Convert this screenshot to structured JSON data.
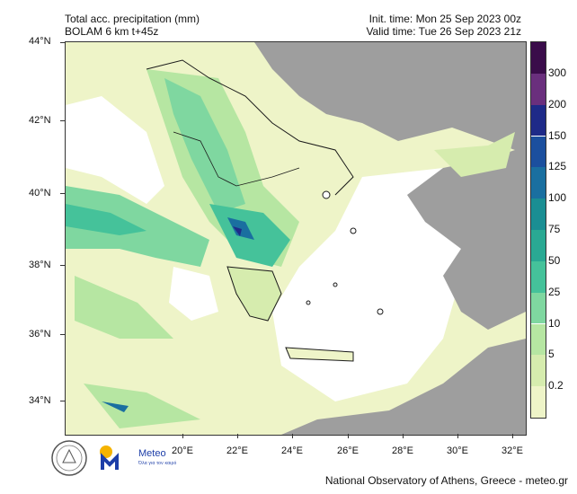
{
  "header": {
    "title_line1": "Total acc. precipitation (mm)",
    "title_line2": "BOLAM 6 km t+45z",
    "init_time": "Init. time: Mon 25 Sep 2023 00z",
    "valid_time": "Valid time: Tue 26 Sep 2023 21z"
  },
  "axes": {
    "lat_labels": [
      "44°N",
      "42°N",
      "40°N",
      "38°N",
      "36°N",
      "34°N"
    ],
    "lon_labels": [
      "20°E",
      "22°E",
      "24°E",
      "26°E",
      "28°E",
      "30°E",
      "32°E"
    ]
  },
  "colorbar": {
    "levels": [
      "0.2",
      "5",
      "10",
      "25",
      "50",
      "75",
      "100",
      "125",
      "150",
      "200",
      "300"
    ],
    "colors": [
      "#eef4c8",
      "#d6ecae",
      "#b6e6a2",
      "#7fd7a0",
      "#45c29a",
      "#2aa993",
      "#1a8e93",
      "#1a6fa0",
      "#1b4f9e",
      "#1e2a88",
      "#6a2f7d",
      "#3a0c4a"
    ]
  },
  "map_colors": {
    "land_gray": "#9e9e9e",
    "sea_white": "#ffffff",
    "border": "#1a1a1a"
  },
  "logos": {
    "meteo_word": "Meteo",
    "meteo_sub": "Όλα για τον καιρό"
  },
  "footer": {
    "credit": "National Observatory of Athens, Greece - meteo.gr"
  }
}
